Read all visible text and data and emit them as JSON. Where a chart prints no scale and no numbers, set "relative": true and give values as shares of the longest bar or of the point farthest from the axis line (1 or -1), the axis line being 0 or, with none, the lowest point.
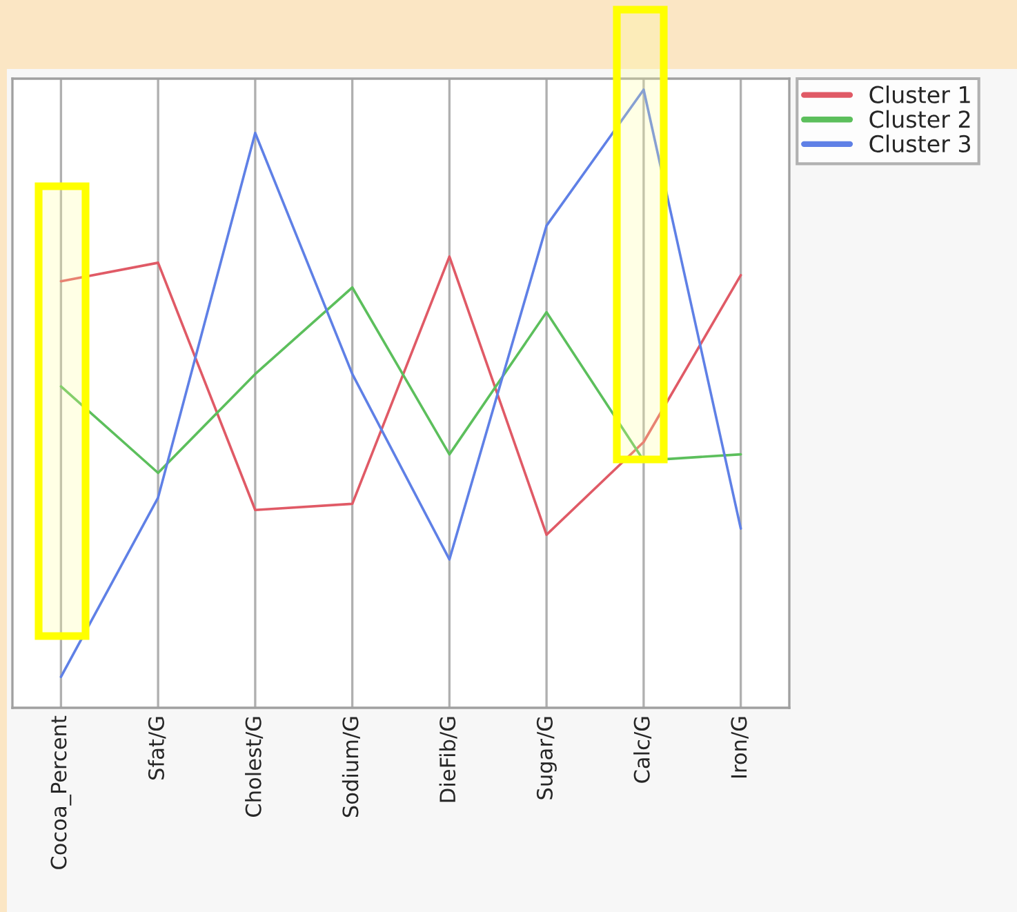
{
  "chart_data": {
    "type": "line",
    "relative": true,
    "categories": [
      "Cocoa_Percent",
      "Sfat/G",
      "Cholest/G",
      "Sodium/G",
      "DieFib/G",
      "Sugar/G",
      "Calc/G",
      "Iron/G"
    ],
    "series": [
      {
        "name": "Cluster 1",
        "color": "#e05a66",
        "values": [
          0.69,
          0.72,
          0.32,
          0.33,
          0.73,
          0.28,
          0.43,
          0.7
        ]
      },
      {
        "name": "Cluster 2",
        "color": "#5cbf5c",
        "values": [
          0.52,
          0.38,
          0.54,
          0.68,
          0.41,
          0.64,
          0.4,
          0.41
        ]
      },
      {
        "name": "Cluster 3",
        "color": "#5f80e6",
        "values": [
          0.05,
          0.34,
          0.93,
          0.54,
          0.24,
          0.78,
          1.0,
          0.29
        ]
      }
    ],
    "grid": "x",
    "legend": "top right",
    "marker": "none",
    "line_style": "solid"
  }
}
